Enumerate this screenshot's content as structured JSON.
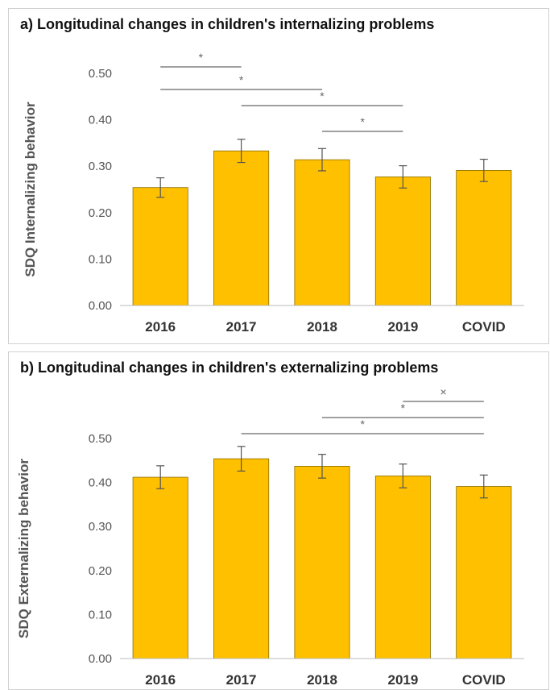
{
  "chart_data": [
    {
      "type": "bar",
      "title": "a) Longitudinal changes in children's internalizing problems",
      "ylabel": "SDQ Internalizing behavior",
      "categories": [
        "2016",
        "2017",
        "2018",
        "2019",
        "COVID"
      ],
      "values": [
        0.254,
        0.333,
        0.314,
        0.277,
        0.291
      ],
      "error": [
        0.021,
        0.025,
        0.024,
        0.024,
        0.024
      ],
      "ylim": [
        0,
        0.5
      ],
      "yticks": [
        "0.00",
        "0.10",
        "0.20",
        "0.30",
        "0.40",
        "0.50"
      ],
      "grid": false,
      "bar_color": "#FFC000",
      "significance": [
        {
          "from": 0,
          "to": 1,
          "mark": "*"
        },
        {
          "from": 0,
          "to": 2,
          "mark": "*"
        },
        {
          "from": 1,
          "to": 3,
          "mark": "*"
        },
        {
          "from": 2,
          "to": 3,
          "mark": "*"
        }
      ]
    },
    {
      "type": "bar",
      "title": "b) Longitudinal changes in children's externalizing problems",
      "ylabel": "SDQ Externalizing behavior",
      "categories": [
        "2016",
        "2017",
        "2018",
        "2019",
        "COVID"
      ],
      "values": [
        0.412,
        0.454,
        0.437,
        0.415,
        0.391
      ],
      "error": [
        0.026,
        0.028,
        0.027,
        0.027,
        0.026
      ],
      "ylim": [
        0,
        0.5
      ],
      "yticks": [
        "0.00",
        "0.10",
        "0.20",
        "0.30",
        "0.40",
        "0.50"
      ],
      "grid": false,
      "bar_color": "#FFC000",
      "significance": [
        {
          "from": 3,
          "to": 4,
          "mark": "×"
        },
        {
          "from": 2,
          "to": 4,
          "mark": "*"
        },
        {
          "from": 1,
          "to": 4,
          "mark": "*"
        }
      ]
    }
  ]
}
